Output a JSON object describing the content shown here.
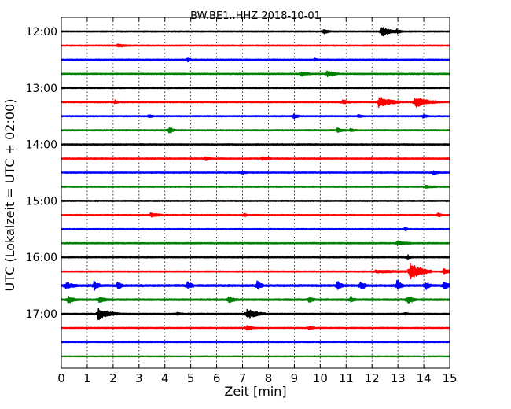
{
  "chart_data": {
    "type": "line",
    "title": "BW.BE1..HHZ 2018-10-01",
    "xlabel": "Zeit  [min]",
    "ylabel": "UTC (Lokalzeit = UTC + 02:00)",
    "xlim": [
      0,
      15
    ],
    "x_ticks": [
      "0",
      "1",
      "2",
      "3",
      "4",
      "5",
      "6",
      "7",
      "8",
      "9",
      "10",
      "11",
      "12",
      "13",
      "14",
      "15"
    ],
    "y_tick_labels": [
      {
        "row": 0,
        "label": "12:00"
      },
      {
        "row": 4,
        "label": "13:00"
      },
      {
        "row": 8,
        "label": "14:00"
      },
      {
        "row": 12,
        "label": "15:00"
      },
      {
        "row": 16,
        "label": "16:00"
      },
      {
        "row": 20,
        "label": "17:00"
      }
    ],
    "grid": "vertical dotted lines at each minute",
    "row_interval_minutes": 15,
    "colors": [
      "#000000",
      "#ff0000",
      "#0000ff",
      "#008000"
    ],
    "series": [
      {
        "start": "12:00",
        "color_index": 0,
        "noise": 1.5,
        "events": [
          {
            "t": 10.15,
            "amp": 5,
            "dur": 0.25
          },
          {
            "t": 12.4,
            "amp": 11,
            "dur": 0.6
          },
          {
            "t": 13.0,
            "amp": 4,
            "dur": 0.2
          }
        ]
      },
      {
        "start": "12:15",
        "color_index": 1,
        "noise": 1.5,
        "events": [
          {
            "t": 2.2,
            "amp": 3,
            "dur": 0.5
          }
        ]
      },
      {
        "start": "12:30",
        "color_index": 2,
        "noise": 1.5,
        "events": [
          {
            "t": 4.9,
            "amp": 5,
            "dur": 0.1
          },
          {
            "t": 9.8,
            "amp": 3,
            "dur": 0.1
          }
        ]
      },
      {
        "start": "12:45",
        "color_index": 3,
        "noise": 1.5,
        "events": [
          {
            "t": 9.3,
            "amp": 5,
            "dur": 0.3
          },
          {
            "t": 10.3,
            "amp": 7,
            "dur": 0.4
          }
        ]
      },
      {
        "start": "13:00",
        "color_index": 0,
        "noise": 1.5,
        "events": []
      },
      {
        "start": "13:15",
        "color_index": 1,
        "noise": 1.8,
        "events": [
          {
            "t": 2.1,
            "amp": 4,
            "dur": 0.1
          },
          {
            "t": 10.9,
            "amp": 5,
            "dur": 0.3
          },
          {
            "t": 12.3,
            "amp": 12,
            "dur": 0.8
          },
          {
            "t": 13.7,
            "amp": 12,
            "dur": 0.8
          }
        ]
      },
      {
        "start": "13:30",
        "color_index": 2,
        "noise": 1.6,
        "events": [
          {
            "t": 3.4,
            "amp": 3,
            "dur": 0.2
          },
          {
            "t": 9.0,
            "amp": 5,
            "dur": 0.2
          },
          {
            "t": 11.5,
            "amp": 3,
            "dur": 0.2
          },
          {
            "t": 14.0,
            "amp": 3,
            "dur": 0.2
          }
        ]
      },
      {
        "start": "13:45",
        "color_index": 3,
        "noise": 1.6,
        "events": [
          {
            "t": 4.2,
            "amp": 9,
            "dur": 0.15
          },
          {
            "t": 10.7,
            "amp": 4,
            "dur": 0.3
          },
          {
            "t": 11.2,
            "amp": 3,
            "dur": 0.2
          }
        ]
      },
      {
        "start": "14:00",
        "color_index": 0,
        "noise": 1.5,
        "events": []
      },
      {
        "start": "14:15",
        "color_index": 1,
        "noise": 1.5,
        "events": [
          {
            "t": 5.6,
            "amp": 4,
            "dur": 0.2
          },
          {
            "t": 7.8,
            "amp": 3,
            "dur": 0.3
          }
        ]
      },
      {
        "start": "14:30",
        "color_index": 2,
        "noise": 1.5,
        "events": [
          {
            "t": 7.0,
            "amp": 3,
            "dur": 0.2
          },
          {
            "t": 14.4,
            "amp": 4,
            "dur": 0.2
          }
        ]
      },
      {
        "start": "14:45",
        "color_index": 3,
        "noise": 1.5,
        "events": [
          {
            "t": 14.1,
            "amp": 3,
            "dur": 0.4
          }
        ]
      },
      {
        "start": "15:00",
        "color_index": 0,
        "noise": 1.5,
        "events": []
      },
      {
        "start": "15:15",
        "color_index": 1,
        "noise": 1.5,
        "events": [
          {
            "t": 3.5,
            "amp": 5,
            "dur": 0.4
          },
          {
            "t": 7.1,
            "amp": 3,
            "dur": 0.1
          },
          {
            "t": 14.6,
            "amp": 4,
            "dur": 0.1
          }
        ]
      },
      {
        "start": "15:30",
        "color_index": 2,
        "noise": 1.5,
        "events": [
          {
            "t": 13.3,
            "amp": 4,
            "dur": 0.1
          }
        ]
      },
      {
        "start": "15:45",
        "color_index": 3,
        "noise": 1.5,
        "events": [
          {
            "t": 13.0,
            "amp": 5,
            "dur": 0.5
          }
        ]
      },
      {
        "start": "16:00",
        "color_index": 0,
        "noise": 1.3,
        "events": [
          {
            "t": 13.4,
            "amp": 6,
            "dur": 0.1
          }
        ]
      },
      {
        "start": "16:15",
        "color_index": 1,
        "noise": 1.5,
        "events": [
          {
            "t": 12.2,
            "amp": 3,
            "dur": 1.5
          },
          {
            "t": 13.5,
            "amp": 22,
            "dur": 0.8
          },
          {
            "t": 14.8,
            "amp": 6,
            "dur": 0.4
          }
        ]
      },
      {
        "start": "16:30",
        "color_index": 2,
        "noise": 2.5,
        "events": [
          {
            "t": 0.2,
            "amp": 7,
            "dur": 0.4
          },
          {
            "t": 1.3,
            "amp": 10,
            "dur": 0.2
          },
          {
            "t": 2.2,
            "amp": 8,
            "dur": 0.2
          },
          {
            "t": 4.9,
            "amp": 10,
            "dur": 0.2
          },
          {
            "t": 7.6,
            "amp": 11,
            "dur": 0.2
          },
          {
            "t": 10.7,
            "amp": 9,
            "dur": 0.2
          },
          {
            "t": 11.6,
            "amp": 9,
            "dur": 0.2
          },
          {
            "t": 13.0,
            "amp": 11,
            "dur": 0.2
          },
          {
            "t": 14.1,
            "amp": 9,
            "dur": 0.2
          },
          {
            "t": 14.8,
            "amp": 8,
            "dur": 0.3
          }
        ]
      },
      {
        "start": "16:45",
        "color_index": 3,
        "noise": 2.2,
        "events": [
          {
            "t": 0.3,
            "amp": 7,
            "dur": 0.3
          },
          {
            "t": 1.5,
            "amp": 6,
            "dur": 0.3
          },
          {
            "t": 6.5,
            "amp": 6,
            "dur": 0.3
          },
          {
            "t": 9.6,
            "amp": 6,
            "dur": 0.2
          },
          {
            "t": 11.2,
            "amp": 6,
            "dur": 0.2
          },
          {
            "t": 13.4,
            "amp": 9,
            "dur": 0.3
          }
        ]
      },
      {
        "start": "17:00",
        "color_index": 0,
        "noise": 1.3,
        "events": [
          {
            "t": 1.45,
            "amp": 14,
            "dur": 0.8
          },
          {
            "t": 4.5,
            "amp": 3,
            "dur": 0.2
          },
          {
            "t": 7.2,
            "amp": 12,
            "dur": 0.7
          },
          {
            "t": 13.3,
            "amp": 4,
            "dur": 0.1
          }
        ]
      },
      {
        "start": "17:15",
        "color_index": 1,
        "noise": 1.3,
        "events": [
          {
            "t": 7.2,
            "amp": 5,
            "dur": 0.3
          },
          {
            "t": 9.6,
            "amp": 4,
            "dur": 0.2
          }
        ]
      },
      {
        "start": "17:30",
        "color_index": 2,
        "noise": 1.2,
        "events": []
      },
      {
        "start": "17:45",
        "color_index": 3,
        "noise": 1.2,
        "events": []
      }
    ]
  }
}
